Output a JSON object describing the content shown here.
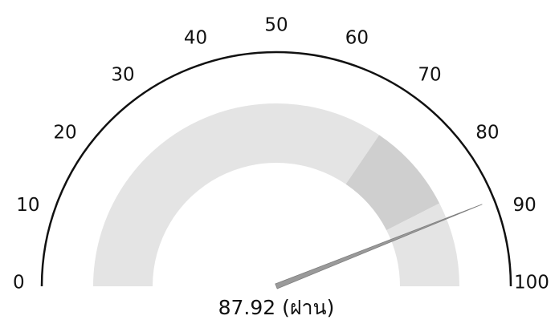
{
  "chart_data": {
    "type": "gauge",
    "min": 0,
    "max": 100,
    "ticks": [
      0,
      10,
      20,
      30,
      40,
      50,
      60,
      70,
      80,
      90,
      100
    ],
    "tick_labels": [
      "0",
      "10",
      "20",
      "30",
      "40",
      "50",
      "60",
      "70",
      "80",
      "90",
      "100"
    ],
    "value": 87.92,
    "value_label": "87.92 (ฝาน)",
    "bands": [
      {
        "from": 0,
        "to": 69,
        "color": "#e4e4e4"
      },
      {
        "from": 69,
        "to": 85,
        "color": "#cfcfcf"
      },
      {
        "from": 85,
        "to": 100,
        "color": "#e4e4e4"
      }
    ],
    "colors": {
      "outer_arc": "#111111",
      "needle": "#9a9a9a"
    }
  }
}
